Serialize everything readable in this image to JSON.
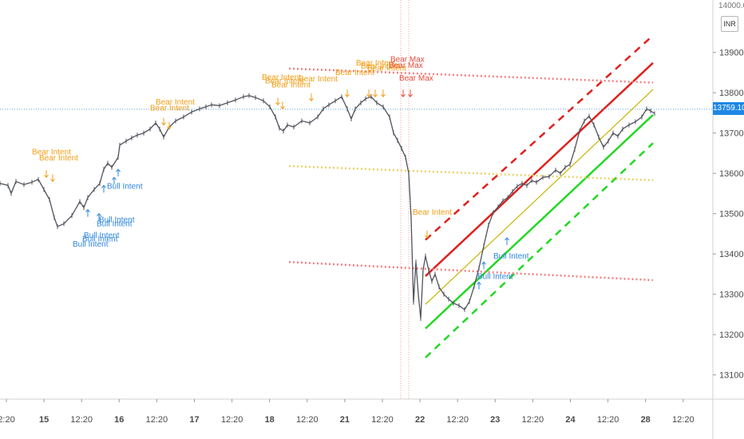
{
  "chart_data": {
    "type": "line",
    "currency_badge": "INR",
    "last_price_label": "13759.10",
    "top_partial_tick": "14000.00",
    "y_ticks": [
      "13900.00",
      "13800.00",
      "13700.00",
      "13600.00",
      "13500.00",
      "13400.00",
      "13300.00",
      "13200.00",
      "13100.00"
    ],
    "ylim": [
      13040,
      14030
    ],
    "x_ticks": [
      "2:20",
      "15",
      "12:20",
      "16",
      "12:20",
      "17",
      "12:20",
      "18",
      "12:20",
      "21",
      "12:20",
      "22",
      "12:20",
      "23",
      "12:20",
      "24",
      "12:20",
      "28",
      "12:20"
    ],
    "x_bold_ticks": [
      "15",
      "16",
      "17",
      "18",
      "21",
      "22",
      "23",
      "24",
      "28"
    ],
    "xlim": [
      0,
      893
    ],
    "price_series": [
      [
        0,
        13575
      ],
      [
        10,
        13570
      ],
      [
        14,
        13550
      ],
      [
        20,
        13580
      ],
      [
        30,
        13572
      ],
      [
        40,
        13578
      ],
      [
        48,
        13585
      ],
      [
        55,
        13560
      ],
      [
        62,
        13535
      ],
      [
        68,
        13490
      ],
      [
        72,
        13468
      ],
      [
        80,
        13475
      ],
      [
        90,
        13495
      ],
      [
        100,
        13530
      ],
      [
        105,
        13515
      ],
      [
        110,
        13540
      ],
      [
        118,
        13560
      ],
      [
        125,
        13575
      ],
      [
        130,
        13610
      ],
      [
        135,
        13625
      ],
      [
        140,
        13615
      ],
      [
        148,
        13640
      ],
      [
        150,
        13670
      ],
      [
        158,
        13680
      ],
      [
        165,
        13688
      ],
      [
        172,
        13695
      ],
      [
        180,
        13700
      ],
      [
        188,
        13710
      ],
      [
        195,
        13725
      ],
      [
        200,
        13710
      ],
      [
        205,
        13690
      ],
      [
        212,
        13715
      ],
      [
        220,
        13730
      ],
      [
        230,
        13740
      ],
      [
        240,
        13752
      ],
      [
        250,
        13760
      ],
      [
        258,
        13765
      ],
      [
        265,
        13770
      ],
      [
        275,
        13768
      ],
      [
        285,
        13775
      ],
      [
        295,
        13782
      ],
      [
        305,
        13790
      ],
      [
        312,
        13793
      ],
      [
        320,
        13788
      ],
      [
        330,
        13780
      ],
      [
        338,
        13765
      ],
      [
        345,
        13740
      ],
      [
        350,
        13712
      ],
      [
        355,
        13705
      ],
      [
        360,
        13720
      ],
      [
        368,
        13715
      ],
      [
        378,
        13730
      ],
      [
        388,
        13725
      ],
      [
        398,
        13740
      ],
      [
        405,
        13760
      ],
      [
        412,
        13770
      ],
      [
        420,
        13780
      ],
      [
        428,
        13790
      ],
      [
        435,
        13760
      ],
      [
        440,
        13735
      ],
      [
        445,
        13760
      ],
      [
        452,
        13775
      ],
      [
        458,
        13785
      ],
      [
        465,
        13790
      ],
      [
        472,
        13775
      ],
      [
        480,
        13765
      ],
      [
        488,
        13740
      ],
      [
        493,
        13700
      ],
      [
        498,
        13682
      ],
      [
        503,
        13662
      ],
      [
        508,
        13640
      ],
      [
        512,
        13600
      ],
      [
        515,
        13490
      ],
      [
        518,
        13280
      ],
      [
        521,
        13380
      ],
      [
        524,
        13300
      ],
      [
        527,
        13240
      ],
      [
        530,
        13360
      ],
      [
        533,
        13395
      ],
      [
        537,
        13360
      ],
      [
        541,
        13332
      ],
      [
        545,
        13350
      ],
      [
        550,
        13318
      ],
      [
        556,
        13300
      ],
      [
        562,
        13288
      ],
      [
        568,
        13278
      ],
      [
        575,
        13272
      ],
      [
        582,
        13262
      ],
      [
        588,
        13282
      ],
      [
        594,
        13320
      ],
      [
        600,
        13365
      ],
      [
        606,
        13420
      ],
      [
        612,
        13472
      ],
      [
        618,
        13503
      ],
      [
        624,
        13517
      ],
      [
        630,
        13532
      ],
      [
        636,
        13540
      ],
      [
        642,
        13555
      ],
      [
        648,
        13568
      ],
      [
        654,
        13575
      ],
      [
        660,
        13570
      ],
      [
        666,
        13582
      ],
      [
        672,
        13578
      ],
      [
        680,
        13590
      ],
      [
        688,
        13592
      ],
      [
        696,
        13608
      ],
      [
        702,
        13600
      ],
      [
        708,
        13615
      ],
      [
        714,
        13622
      ],
      [
        720,
        13660
      ],
      [
        726,
        13705
      ],
      [
        732,
        13730
      ],
      [
        738,
        13742
      ],
      [
        744,
        13720
      ],
      [
        750,
        13690
      ],
      [
        756,
        13665
      ],
      [
        762,
        13680
      ],
      [
        768,
        13700
      ],
      [
        774,
        13692
      ],
      [
        780,
        13710
      ],
      [
        788,
        13720
      ],
      [
        796,
        13728
      ],
      [
        804,
        13740
      ],
      [
        810,
        13760
      ],
      [
        815,
        13755
      ],
      [
        820,
        13748
      ]
    ],
    "price_series_color": "#50535e",
    "overlays": [
      {
        "x": [
          533,
          818
        ],
        "y": [
          13345,
          13874
        ],
        "color": "#e0201c",
        "style": "solid"
      },
      {
        "x": [
          533,
          818
        ],
        "y": [
          13435,
          13942
        ],
        "color": "#e0201c",
        "style": "dashed"
      },
      {
        "x": [
          533,
          818
        ],
        "y": [
          13215,
          13745
        ],
        "color": "#22d822",
        "style": "solid"
      },
      {
        "x": [
          533,
          818
        ],
        "y": [
          13143,
          13675
        ],
        "color": "#22d822",
        "style": "dashed"
      },
      {
        "x": [
          533,
          818
        ],
        "y": [
          13275,
          13808
        ],
        "color": "#c8b400",
        "style": "solid"
      },
      {
        "x": [
          362,
          818
        ],
        "y": [
          13860,
          13825
        ],
        "color": "#f08080",
        "style": "dotted"
      },
      {
        "x": [
          362,
          818
        ],
        "y": [
          13380,
          13335
        ],
        "color": "#f08080",
        "style": "dotted"
      },
      {
        "x": [
          362,
          818
        ],
        "y": [
          13618,
          13583
        ],
        "color": "#e8d26a",
        "style": "dotted"
      }
    ],
    "hline": {
      "y": 13759.1,
      "color": "#5aa0e0"
    },
    "vline_band": {
      "x": [
        502,
        512
      ],
      "color": "#f4a0a0"
    },
    "annotations": [
      {
        "text": "Bear Intent",
        "x": 40,
        "y": 13647,
        "color": "#f39c12"
      },
      {
        "text": "Bear Intent",
        "x": 49,
        "y": 13632,
        "color": "#f39c12"
      },
      {
        "text": "Bear Intent",
        "x": 195,
        "y": 13771,
        "color": "#f39c12"
      },
      {
        "text": "Bear Intent",
        "x": 188,
        "y": 13756,
        "color": "#f39c12"
      },
      {
        "text": "Bear Intent",
        "x": 328,
        "y": 13832,
        "color": "#f39c12"
      },
      {
        "text": "Bear Intent",
        "x": 332,
        "y": 13823,
        "color": "#f39c12"
      },
      {
        "text": "Bear Intent",
        "x": 340,
        "y": 13813,
        "color": "#f39c12"
      },
      {
        "text": "Bear Intent",
        "x": 374,
        "y": 13828,
        "color": "#f39c12"
      },
      {
        "text": "Bear Intent",
        "x": 420,
        "y": 13844,
        "color": "#f39c12"
      },
      {
        "text": "Bear Intent",
        "x": 446,
        "y": 13868,
        "color": "#f39c12"
      },
      {
        "text": "Bear Intent",
        "x": 452,
        "y": 13860,
        "color": "#f39c12"
      },
      {
        "text": "Bear Intent",
        "x": 460,
        "y": 13855,
        "color": "#f39c12"
      },
      {
        "text": "Bear Max",
        "x": 489,
        "y": 13877,
        "color": "#e74c3c"
      },
      {
        "text": "Bear Max",
        "x": 487,
        "y": 13862,
        "color": "#e74c3c"
      },
      {
        "text": "Bear Max",
        "x": 500,
        "y": 13830,
        "color": "#e74c3c"
      },
      {
        "text": "Bear Intent",
        "x": 517,
        "y": 13497,
        "color": "#f39c12"
      },
      {
        "text": "Bull Intent",
        "x": 134,
        "y": 13562,
        "color": "#2e86de"
      },
      {
        "text": "Bull Intent",
        "x": 124,
        "y": 13479,
        "color": "#2e86de"
      },
      {
        "text": "Bull Intent",
        "x": 121,
        "y": 13469,
        "color": "#2e86de"
      },
      {
        "text": "Bull Intent",
        "x": 105,
        "y": 13440,
        "color": "#2e86de"
      },
      {
        "text": "Bull Intent",
        "x": 103,
        "y": 13431,
        "color": "#2e86de"
      },
      {
        "text": "Bull Intent",
        "x": 91,
        "y": 13418,
        "color": "#2e86de"
      },
      {
        "text": "Bull Intent",
        "x": 618,
        "y": 13388,
        "color": "#2e86de"
      },
      {
        "text": "Bull Intent",
        "x": 598,
        "y": 13338,
        "color": "#2e86de"
      }
    ],
    "arrows": [
      {
        "x": 58,
        "y": 13590,
        "dir": "down",
        "color": "#f39c12"
      },
      {
        "x": 66,
        "y": 13580,
        "dir": "down",
        "color": "#f39c12"
      },
      {
        "x": 205,
        "y": 13720,
        "dir": "down",
        "color": "#f39c12"
      },
      {
        "x": 212,
        "y": 13710,
        "dir": "down",
        "color": "#f39c12"
      },
      {
        "x": 348,
        "y": 13770,
        "dir": "down",
        "color": "#f39c12"
      },
      {
        "x": 354,
        "y": 13760,
        "dir": "down",
        "color": "#f39c12"
      },
      {
        "x": 390,
        "y": 13780,
        "dir": "down",
        "color": "#f39c12"
      },
      {
        "x": 435,
        "y": 13790,
        "dir": "down",
        "color": "#f39c12"
      },
      {
        "x": 462,
        "y": 13790,
        "dir": "down",
        "color": "#f39c12"
      },
      {
        "x": 470,
        "y": 13790,
        "dir": "down",
        "color": "#f39c12"
      },
      {
        "x": 480,
        "y": 13790,
        "dir": "down",
        "color": "#f39c12"
      },
      {
        "x": 505,
        "y": 13790,
        "dir": "down",
        "color": "#e74c3c"
      },
      {
        "x": 514,
        "y": 13790,
        "dir": "down",
        "color": "#e74c3c"
      },
      {
        "x": 535,
        "y": 13440,
        "dir": "down",
        "color": "#f39c12"
      },
      {
        "x": 110,
        "y": 13510,
        "dir": "up",
        "color": "#2e86de"
      },
      {
        "x": 124,
        "y": 13500,
        "dir": "up",
        "color": "#2e86de"
      },
      {
        "x": 130,
        "y": 13570,
        "dir": "up",
        "color": "#2e86de"
      },
      {
        "x": 143,
        "y": 13590,
        "dir": "up",
        "color": "#2e86de"
      },
      {
        "x": 148,
        "y": 13610,
        "dir": "up",
        "color": "#2e86de"
      },
      {
        "x": 600,
        "y": 13330,
        "dir": "up",
        "color": "#2e86de"
      },
      {
        "x": 606,
        "y": 13380,
        "dir": "up",
        "color": "#2e86de"
      },
      {
        "x": 635,
        "y": 13440,
        "dir": "up",
        "color": "#2e86de"
      }
    ]
  }
}
